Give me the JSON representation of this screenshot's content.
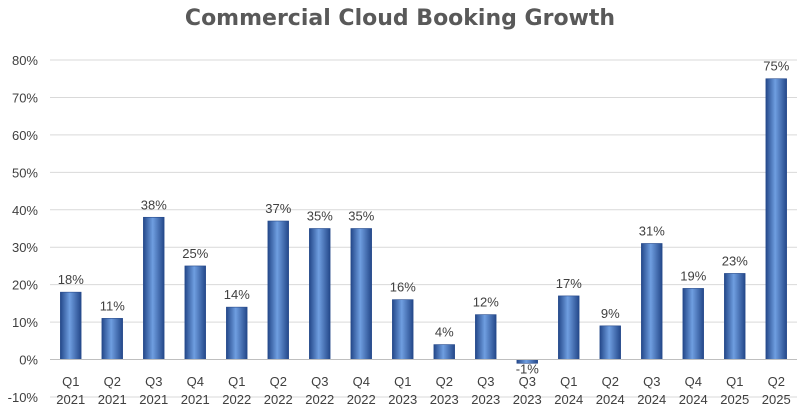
{
  "chart_data": {
    "type": "bar",
    "title": "Commercial Cloud Booking Growth",
    "xlabel": "",
    "ylabel": "",
    "categories": [
      [
        "Q1",
        "2021"
      ],
      [
        "Q2",
        "2021"
      ],
      [
        "Q3",
        "2021"
      ],
      [
        "Q4",
        "2021"
      ],
      [
        "Q1",
        "2022"
      ],
      [
        "Q2",
        "2022"
      ],
      [
        "Q3",
        "2022"
      ],
      [
        "Q4",
        "2022"
      ],
      [
        "Q1",
        "2023"
      ],
      [
        "Q2",
        "2023"
      ],
      [
        "Q3",
        "2023"
      ],
      [
        "Q3",
        "2023"
      ],
      [
        "Q1",
        "2024"
      ],
      [
        "Q2",
        "2024"
      ],
      [
        "Q3",
        "2024"
      ],
      [
        "Q4",
        "2024"
      ],
      [
        "Q1",
        "2025"
      ],
      [
        "Q2",
        "2025"
      ]
    ],
    "values": [
      18,
      11,
      38,
      25,
      14,
      37,
      35,
      35,
      16,
      4,
      12,
      -1,
      17,
      9,
      31,
      19,
      23,
      75
    ],
    "value_labels": [
      "18%",
      "11%",
      "38%",
      "25%",
      "14%",
      "37%",
      "35%",
      "35%",
      "16%",
      "4%",
      "12%",
      "-1%",
      "17%",
      "9%",
      "31%",
      "19%",
      "23%",
      "75%"
    ],
    "ylim": [
      -10,
      80
    ],
    "yticks": [
      -10,
      0,
      10,
      20,
      30,
      40,
      50,
      60,
      70,
      80
    ],
    "ytick_labels": [
      "-10%",
      "0%",
      "10%",
      "20%",
      "30%",
      "40%",
      "50%",
      "60%",
      "70%",
      "80%"
    ],
    "grid": true,
    "legend": "none",
    "bar_color": "#3f74c4",
    "bar_color_dark": "#24488a",
    "bar_color_light": "#6f9ee0"
  }
}
